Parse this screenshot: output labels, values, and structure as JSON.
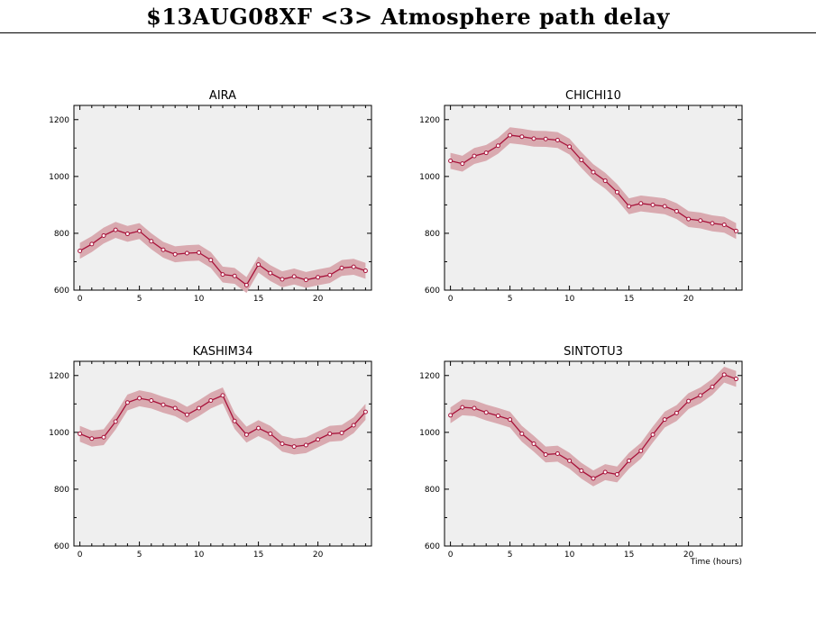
{
  "page_title": "$13AUG08XF <3>  Atmosphere path delay",
  "colors": {
    "line": "#a8123a",
    "band": "#d9aab0",
    "panel_bg": "#efefef"
  },
  "chart_data": [
    {
      "type": "line",
      "title": "AIRA",
      "xlabel": "",
      "xlim": [
        -0.5,
        24.5
      ],
      "ylim": [
        600,
        1250
      ],
      "xticks": [
        0,
        5,
        10,
        15,
        20
      ],
      "yticks": [
        600,
        800,
        1000,
        1200
      ],
      "band_width": 28,
      "x": [
        0,
        1,
        2,
        3,
        4,
        5,
        6,
        7,
        8,
        9,
        10,
        11,
        12,
        13,
        14,
        15,
        16,
        17,
        18,
        19,
        20,
        21,
        22,
        23,
        24
      ],
      "values": [
        738,
        762,
        792,
        812,
        798,
        808,
        772,
        742,
        726,
        730,
        732,
        706,
        655,
        650,
        618,
        690,
        660,
        638,
        648,
        636,
        645,
        653,
        678,
        682,
        668
      ]
    },
    {
      "type": "line",
      "title": "CHICHI10",
      "xlabel": "",
      "xlim": [
        -0.5,
        24.5
      ],
      "ylim": [
        600,
        1250
      ],
      "xticks": [
        0,
        5,
        10,
        15,
        20
      ],
      "yticks": [
        600,
        800,
        1000,
        1200
      ],
      "band_width": 28,
      "x": [
        0,
        1,
        2,
        3,
        4,
        5,
        6,
        7,
        8,
        9,
        10,
        11,
        12,
        13,
        14,
        15,
        16,
        17,
        18,
        19,
        20,
        21,
        22,
        23,
        24
      ],
      "values": [
        1055,
        1045,
        1072,
        1083,
        1108,
        1145,
        1140,
        1133,
        1132,
        1128,
        1105,
        1058,
        1015,
        985,
        945,
        895,
        905,
        900,
        895,
        878,
        850,
        845,
        835,
        830,
        808
      ]
    },
    {
      "type": "line",
      "title": "KASHIM34",
      "xlabel": "",
      "xlim": [
        -0.5,
        24.5
      ],
      "ylim": [
        600,
        1250
      ],
      "xticks": [
        0,
        5,
        10,
        15,
        20
      ],
      "yticks": [
        600,
        800,
        1000,
        1200
      ],
      "band_width": 28,
      "x": [
        0,
        1,
        2,
        3,
        4,
        5,
        6,
        7,
        8,
        9,
        10,
        11,
        12,
        13,
        14,
        15,
        16,
        17,
        18,
        19,
        20,
        21,
        22,
        23,
        24
      ],
      "values": [
        995,
        978,
        983,
        1038,
        1105,
        1120,
        1112,
        1097,
        1085,
        1062,
        1085,
        1112,
        1130,
        1040,
        992,
        1015,
        995,
        960,
        950,
        955,
        975,
        995,
        998,
        1025,
        1072
      ]
    },
    {
      "type": "line",
      "title": "SINTOTU3",
      "xlabel": "Time (hours)",
      "xlim": [
        -0.5,
        24.5
      ],
      "ylim": [
        600,
        1250
      ],
      "xticks": [
        0,
        5,
        10,
        15,
        20
      ],
      "yticks": [
        600,
        800,
        1000,
        1200
      ],
      "band_width": 28,
      "x": [
        0,
        1,
        2,
        3,
        4,
        5,
        6,
        7,
        8,
        9,
        10,
        11,
        12,
        13,
        14,
        15,
        16,
        17,
        18,
        19,
        20,
        21,
        22,
        23,
        24
      ],
      "values": [
        1060,
        1088,
        1085,
        1070,
        1058,
        1045,
        995,
        960,
        922,
        925,
        900,
        865,
        838,
        860,
        852,
        900,
        935,
        992,
        1045,
        1068,
        1110,
        1130,
        1160,
        1203,
        1188
      ]
    }
  ]
}
